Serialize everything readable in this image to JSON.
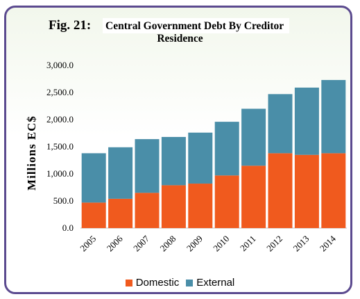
{
  "chart_data": {
    "type": "bar",
    "stacked": true,
    "fig_label": "Fig. 21:",
    "title_line1": "Central Government Debt By Creditor",
    "title_line2": "Residence",
    "ylabel": "Millions EC$",
    "xlabel": "",
    "ylim": [
      0,
      3000
    ],
    "yticks": [
      "0.0",
      "500.0",
      "1,000.0",
      "1,500.0",
      "2,000.0",
      "2,500.0",
      "3,000.0"
    ],
    "ytick_values": [
      0,
      500,
      1000,
      1500,
      2000,
      2500,
      3000
    ],
    "categories": [
      "2005",
      "2006",
      "2007",
      "2008",
      "2009",
      "2010",
      "2011",
      "2012",
      "2013",
      "2014"
    ],
    "series": [
      {
        "name": "Domestic",
        "color": "#f05a1e",
        "values": [
          470,
          540,
          650,
          790,
          820,
          970,
          1150,
          1380,
          1350,
          1380
        ]
      },
      {
        "name": "External",
        "color": "#4a8ea8",
        "values": [
          910,
          950,
          990,
          890,
          940,
          990,
          1050,
          1090,
          1240,
          1350
        ]
      }
    ],
    "grid": false,
    "legend_position": "bottom"
  }
}
